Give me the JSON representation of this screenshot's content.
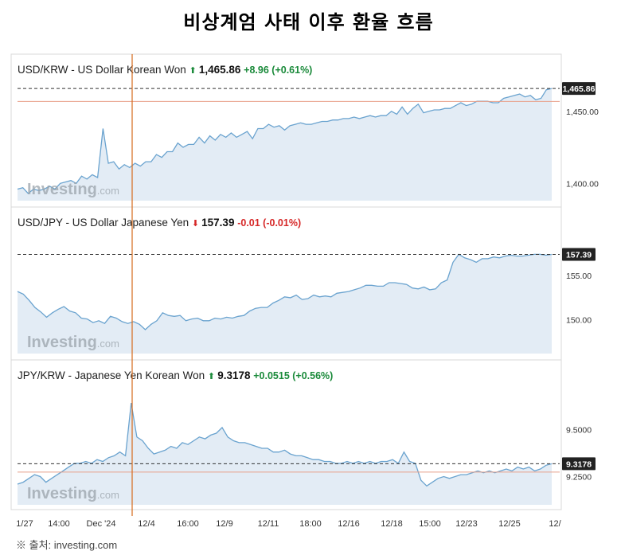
{
  "page_title": "비상계엄 사태 이후 환율 흐름",
  "source_note": "※ 출처: investing.com",
  "watermark": {
    "brand": "Investing",
    "suffix": ".com"
  },
  "colors": {
    "up": "#1a8a3a",
    "down": "#d62828",
    "line": "#6aa3cf",
    "fill": "#e3ecf5",
    "marker_line": "#d66a1c",
    "reference_line": "#e8a08a",
    "dashed_current": "#333333",
    "badge_bg": "#222222"
  },
  "x_axis_labels": [
    "1/27",
    "14:00",
    "Dec '24",
    "12/4",
    "16:00",
    "12/9",
    "12/11",
    "18:00",
    "12/16",
    "12/18",
    "15:00",
    "12/23",
    "12/25",
    "12/"
  ],
  "chart_data": [
    {
      "type": "area",
      "pair": "USD/KRW - US Dollar Korean Won",
      "direction": "up",
      "arrow": "⬆",
      "price": "1,465.86",
      "change": "+8.96",
      "change_pct": "(+0.61%)",
      "ylim": [
        1388,
        1472
      ],
      "ticks": [
        1450,
        1400
      ],
      "tick_labels": [
        "1,450.00",
        "1,400.00"
      ],
      "current_value": 1465.86,
      "current_label": "1,465.86",
      "reference_value": 1456.9,
      "values": [
        1396,
        1397,
        1393,
        1396,
        1395,
        1396,
        1398,
        1396,
        1400,
        1401,
        1402,
        1400,
        1405,
        1403,
        1406,
        1404,
        1438,
        1414,
        1415,
        1410,
        1413,
        1411,
        1414,
        1412,
        1415,
        1415,
        1420,
        1418,
        1422,
        1422,
        1428,
        1425,
        1427,
        1427,
        1432,
        1428,
        1433,
        1430,
        1434,
        1432,
        1435,
        1432,
        1434,
        1436,
        1431,
        1438,
        1438,
        1441,
        1439,
        1440,
        1437,
        1440,
        1441,
        1442,
        1441,
        1441,
        1442,
        1443,
        1443,
        1444,
        1444,
        1445,
        1445,
        1446,
        1445,
        1446,
        1447,
        1446,
        1447,
        1447,
        1450,
        1448,
        1453,
        1448,
        1452,
        1455,
        1449,
        1450,
        1451,
        1451,
        1452,
        1452,
        1454,
        1456,
        1454,
        1455,
        1457,
        1457,
        1457,
        1456,
        1456,
        1459,
        1460,
        1461,
        1462,
        1460,
        1461,
        1458,
        1459,
        1465,
        1465.86
      ]
    },
    {
      "type": "area",
      "pair": "USD/JPY - US Dollar Japanese Yen",
      "direction": "down",
      "arrow": "⬇",
      "price": "157.39",
      "change": "-0.01",
      "change_pct": "(-0.01%)",
      "ylim": [
        146.2,
        159.5
      ],
      "ticks": [
        155,
        150
      ],
      "tick_labels": [
        "155.00",
        "150.00"
      ],
      "current_value": 157.39,
      "current_label": "157.39",
      "values": [
        153.2,
        152.9,
        152.2,
        151.4,
        150.9,
        150.3,
        150.8,
        151.2,
        151.5,
        151.0,
        150.8,
        150.2,
        150.1,
        149.7,
        149.9,
        149.6,
        150.4,
        150.2,
        149.8,
        149.6,
        149.8,
        149.5,
        148.9,
        149.5,
        149.9,
        150.8,
        150.5,
        150.4,
        150.5,
        149.9,
        150.1,
        150.2,
        149.9,
        149.9,
        150.2,
        150.1,
        150.3,
        150.2,
        150.4,
        150.5,
        151.0,
        151.3,
        151.4,
        151.4,
        151.9,
        152.2,
        152.6,
        152.5,
        152.8,
        152.3,
        152.4,
        152.8,
        152.6,
        152.7,
        152.6,
        153.0,
        153.1,
        153.2,
        153.4,
        153.6,
        153.9,
        153.9,
        153.8,
        153.8,
        154.2,
        154.2,
        154.1,
        154.0,
        153.6,
        153.5,
        153.7,
        153.4,
        153.5,
        154.2,
        154.5,
        156.5,
        157.4,
        157.0,
        156.8,
        156.5,
        156.9,
        156.9,
        157.1,
        157.0,
        157.2,
        157.3,
        157.2,
        157.2,
        157.3,
        157.4,
        157.4,
        157.3,
        157.39
      ]
    },
    {
      "type": "area",
      "pair": "JPY/KRW - Japanese Yen Korean Won",
      "direction": "up",
      "arrow": "⬆",
      "price": "9.3178",
      "change": "+0.0515",
      "change_pct": "(+0.56%)",
      "ylim": [
        9.1,
        9.725
      ],
      "ticks": [
        9.5,
        9.25
      ],
      "tick_labels": [
        "9.5000",
        "9.2500"
      ],
      "current_value": 9.3178,
      "current_label": "9.3178",
      "reference_value": 9.2735,
      "values": [
        9.21,
        9.22,
        9.24,
        9.26,
        9.25,
        9.22,
        9.24,
        9.26,
        9.28,
        9.3,
        9.32,
        9.32,
        9.33,
        9.32,
        9.34,
        9.33,
        9.35,
        9.36,
        9.38,
        9.36,
        9.64,
        9.46,
        9.44,
        9.4,
        9.37,
        9.38,
        9.39,
        9.41,
        9.4,
        9.43,
        9.42,
        9.44,
        9.46,
        9.45,
        9.47,
        9.48,
        9.51,
        9.46,
        9.44,
        9.43,
        9.43,
        9.42,
        9.41,
        9.4,
        9.4,
        9.38,
        9.38,
        9.39,
        9.37,
        9.36,
        9.36,
        9.35,
        9.34,
        9.34,
        9.33,
        9.33,
        9.32,
        9.32,
        9.33,
        9.32,
        9.33,
        9.32,
        9.33,
        9.32,
        9.33,
        9.33,
        9.34,
        9.32,
        9.38,
        9.33,
        9.32,
        9.23,
        9.2,
        9.22,
        9.24,
        9.25,
        9.24,
        9.25,
        9.26,
        9.26,
        9.27,
        9.28,
        9.27,
        9.28,
        9.27,
        9.28,
        9.29,
        9.28,
        9.3,
        9.29,
        9.3,
        9.28,
        9.29,
        9.31,
        9.3178
      ]
    }
  ]
}
